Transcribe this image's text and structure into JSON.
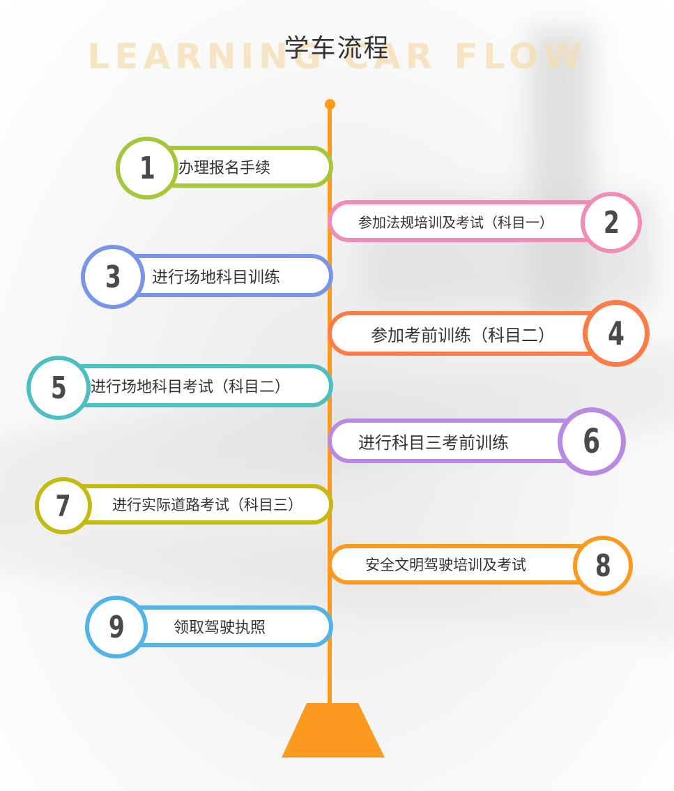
{
  "title": "学车流程",
  "subtitle_en": "LEARNING CAR FLOW",
  "colors": {
    "axis": "#fb9a1e",
    "steps": [
      "#a5c73c",
      "#f28bb5",
      "#7896e8",
      "#fc7c47",
      "#4dbfc2",
      "#b98ae4",
      "#c4ba12",
      "#fb9a1e",
      "#52b4e6"
    ]
  },
  "steps": [
    {
      "number": "1",
      "label": "办理报名手续"
    },
    {
      "number": "2",
      "label": "参加法规培训及考试（科目一）"
    },
    {
      "number": "3",
      "label": "进行场地科目训练"
    },
    {
      "number": "4",
      "label": "参加考前训练（科目二）"
    },
    {
      "number": "5",
      "label": "进行场地科目考试（科目二）"
    },
    {
      "number": "6",
      "label": "进行科目三考前训练"
    },
    {
      "number": "7",
      "label": "进行实际道路考试（科目三）"
    },
    {
      "number": "8",
      "label": "安全文明驾驶培训及考试"
    },
    {
      "number": "9",
      "label": "领取驾驶执照"
    }
  ]
}
